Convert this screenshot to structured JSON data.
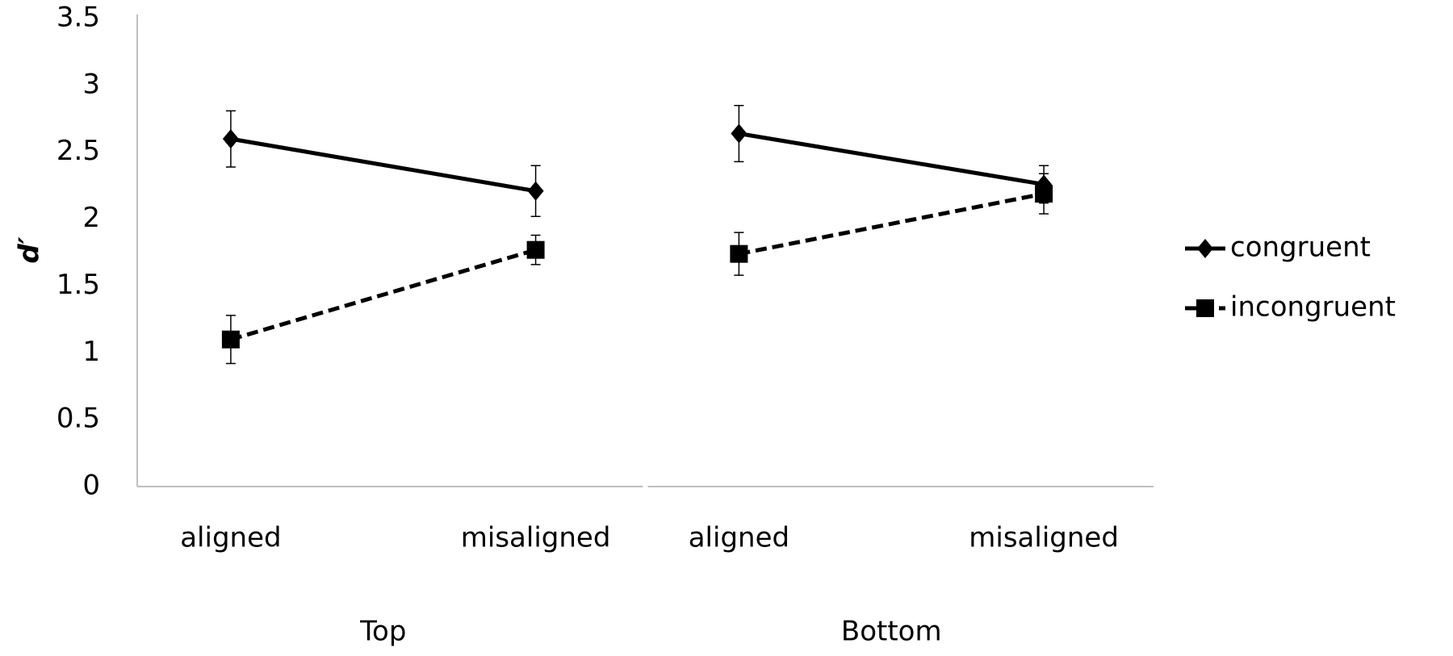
{
  "chart_data": {
    "type": "line",
    "ylabel": "d′",
    "groups": [
      "Top",
      "Bottom"
    ],
    "categories": [
      "aligned",
      "misaligned",
      "aligned",
      "misaligned"
    ],
    "series": [
      {
        "name": "congruent",
        "color": "#000000",
        "marker": "diamond",
        "dash": false,
        "values": [
          2.6,
          2.21,
          2.64,
          2.26
        ],
        "errors": [
          0.21,
          0.19,
          0.21,
          0.14
        ]
      },
      {
        "name": "incongruent",
        "color": "#000000",
        "marker": "square",
        "dash": true,
        "values": [
          1.1,
          1.77,
          1.74,
          2.19
        ],
        "errors": [
          0.18,
          0.11,
          0.16,
          0.15
        ]
      }
    ],
    "ylim": [
      0,
      3.5
    ],
    "yticks": [
      0,
      0.5,
      1,
      1.5,
      2,
      2.5,
      3,
      3.5
    ],
    "grid": false,
    "legend": "right"
  }
}
